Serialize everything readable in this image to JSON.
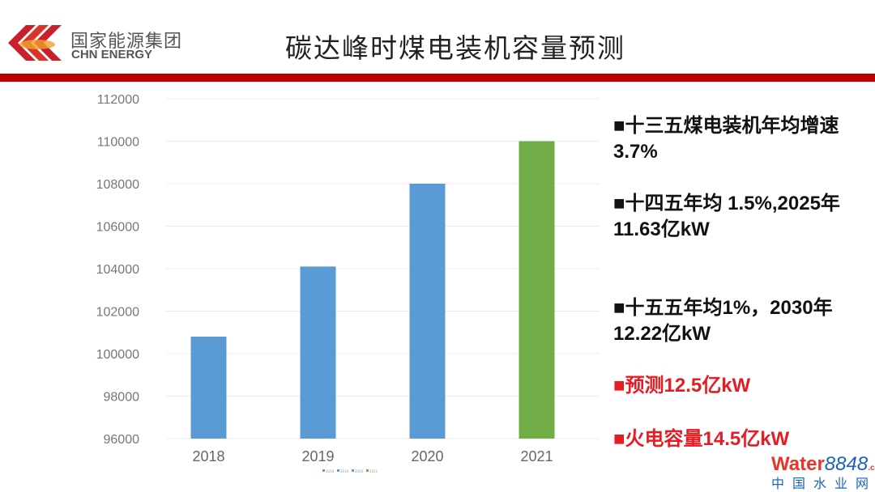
{
  "header": {
    "logo_cn": "国家能源集团",
    "logo_en": "CHN ENERGY",
    "title": "碳达峰时煤电装机容量预测"
  },
  "notes": [
    {
      "text": "■十三五煤电装机年均增速3.7%",
      "color": "#111111"
    },
    {
      "text": "■十四五年均 1.5%,2025年11.63亿kW",
      "color": "#111111"
    },
    {
      "text": "■十五五年均1%，2030年12.22亿kW",
      "color": "#111111"
    },
    {
      "text": "■预测12.5亿kW",
      "color": "#e51c23"
    },
    {
      "text": "■火电容量14.5亿kW",
      "color": "#e51c23"
    }
  ],
  "watermark": {
    "en": "Water",
    "num": "8848",
    "dom": ".com",
    "cn": "中国水业网"
  },
  "chart_data": {
    "type": "bar",
    "categories": [
      "2018",
      "2019",
      "2020",
      "2021"
    ],
    "values": [
      100800,
      104100,
      108000,
      110000
    ],
    "colors": [
      "#5b9bd5",
      "#5b9bd5",
      "#5b9bd5",
      "#70ad47"
    ],
    "ylim": [
      96000,
      112000
    ],
    "yticks": [
      "96000",
      "98000",
      "100000",
      "102000",
      "104000",
      "106000",
      "108000",
      "110000",
      "112000"
    ],
    "legend": [
      "2018",
      "2019",
      "2020",
      "2021"
    ],
    "legend_position": "bottom",
    "grid": true
  }
}
